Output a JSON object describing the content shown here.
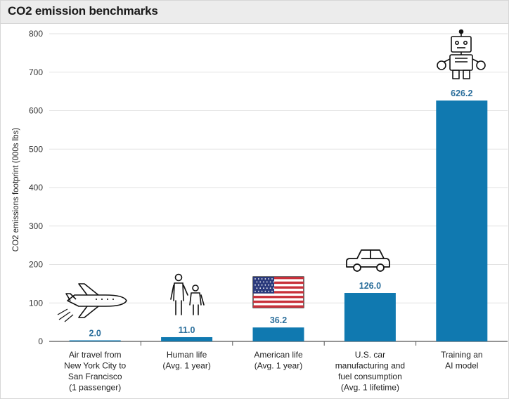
{
  "title": "CO2 emission benchmarks",
  "colors": {
    "bar": "#1079b0",
    "grid": "#e2e2e2",
    "value_label": "#2a6e9b",
    "title_bg": "#ececec"
  },
  "icons": [
    "airplane-icon",
    "people-icon",
    "us-flag-icon",
    "car-icon",
    "robot-icon"
  ],
  "chart_data": {
    "type": "bar",
    "title": "CO2 emission benchmarks",
    "xlabel": "",
    "ylabel": "CO2 emissions footprint (000s lbs)",
    "ylim": [
      0,
      800
    ],
    "yticks": [
      0,
      100,
      200,
      300,
      400,
      500,
      600,
      700,
      800
    ],
    "grid": true,
    "categories": [
      [
        "Air travel from",
        "New York City to",
        "San Francisco",
        "(1 passenger)"
      ],
      [
        "Human life",
        "(Avg. 1 year)"
      ],
      [
        "American life",
        "(Avg. 1 year)"
      ],
      [
        "U.S. car",
        "manufacturing and",
        "fuel consumption",
        "(Avg. 1 lifetime)"
      ],
      [
        "Training an",
        "AI model"
      ]
    ],
    "values": [
      2.0,
      11.0,
      36.2,
      126.0,
      626.2
    ],
    "value_labels": [
      "2.0",
      "11.0",
      "36.2",
      "126.0",
      "626.2"
    ]
  }
}
